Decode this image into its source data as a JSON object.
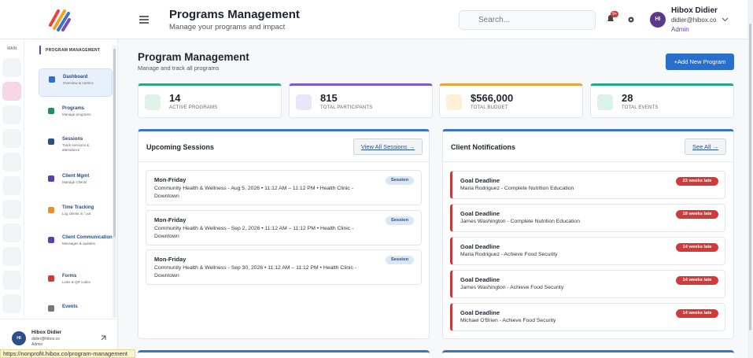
{
  "header": {
    "title": "Programs Management",
    "subtitle": "Manage your programs and impact",
    "search_placeholder": "Search...",
    "notification_badge": "9+",
    "user": {
      "initials": "HI",
      "name": "Hibox Didier",
      "email": "didier@hibox.co",
      "role": "Admin"
    }
  },
  "rail": {
    "label": "MAIN"
  },
  "sidebar": {
    "section": "PROGRAM MANAGEMENT",
    "items": [
      {
        "title": "Dashboard",
        "desc": "Overview & metrics"
      },
      {
        "title": "Programs",
        "desc": "Manage programs"
      },
      {
        "title": "Sessions",
        "desc": "Track sessions & attendance"
      },
      {
        "title": "Client Mgmt",
        "desc": "Manage Clients"
      },
      {
        "title": "Time Tracking",
        "desc": "Log clients in / out"
      },
      {
        "title": "Client Communication",
        "desc": "Messages & updates"
      },
      {
        "title": "Forms",
        "desc": "Links & QR codes"
      },
      {
        "title": "Events"
      }
    ],
    "user": {
      "initials": "HI",
      "name": "Hibox Didier",
      "email": "didier@hibox.co",
      "role": "Admin"
    }
  },
  "status_url": "https://nonprofit.hibox.co/program-management",
  "main": {
    "title": "Program Management",
    "subtitle": "Manage and track all programs",
    "add_button": "+Add New Program",
    "stats": [
      {
        "value": 14,
        "label": "ACTIVE PROGRAMS"
      },
      {
        "value": 815,
        "label": "TOTAL PARTICIPANTS"
      },
      {
        "value": "$566,000",
        "label": "TOTAL BUDGET"
      },
      {
        "value": 28,
        "label": "TOTAL EVENTS"
      }
    ],
    "sessions": {
      "title": "Upcoming Sessions",
      "button": "View All Sessions →",
      "items": [
        {
          "title": "Mon-Friday",
          "detail": "Community Health & Wellness - Aug 5, 2026 • 11:12 AM – 11:12 PM • Health Clinic - Downtown",
          "badge": "Session"
        },
        {
          "title": "Mon-Friday",
          "detail": "Community Health & Wellness - Sep 2, 2026 • 11:12 AM – 11:12 PM • Health Clinic - Downtown",
          "badge": "Session"
        },
        {
          "title": "Mon-Friday",
          "detail": "Community Health & Wellness - Sep 30, 2026 • 11:12 AM – 11:12 PM • Health Clinic - Downtown",
          "badge": "Session"
        }
      ]
    },
    "notifications": {
      "title": "Client Notifications",
      "button": "See All →",
      "items": [
        {
          "title": "Goal Deadline",
          "detail": "Maria Rodriguez - Complete Nutrition Education",
          "badge": "23 weeks late"
        },
        {
          "title": "Goal Deadline",
          "detail": "James Washington - Complete Nutrition Education",
          "badge": "18 weeks late"
        },
        {
          "title": "Goal Deadline",
          "detail": "Maria Rodriguez - Achieve Food Security",
          "badge": "14 weeks late"
        },
        {
          "title": "Goal Deadline",
          "detail": "James Washington - Achieve Food Security",
          "badge": "14 weeks late"
        },
        {
          "title": "Goal Deadline",
          "detail": "Michael O'Brien - Achieve Food Security",
          "badge": "14 weeks late"
        }
      ]
    }
  }
}
